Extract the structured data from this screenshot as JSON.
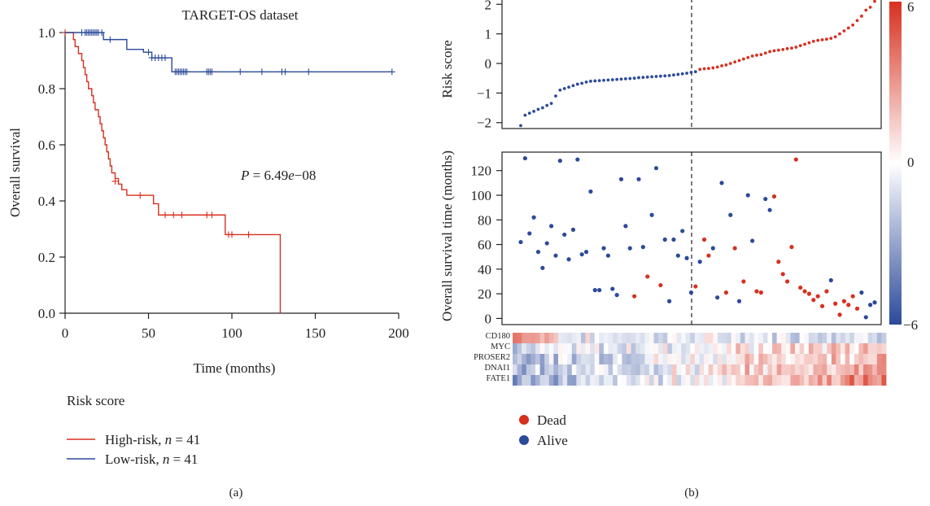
{
  "figure": {
    "panel_a_label": "(a)",
    "panel_b_label": "(b)"
  },
  "chart_data": [
    {
      "type": "line",
      "chart_kind": "kaplan-meier",
      "title": "TARGET-OS dataset",
      "xlabel": "Time (months)",
      "ylabel": "Overall survival",
      "xlim": [
        0,
        200
      ],
      "ylim": [
        0,
        1
      ],
      "x_ticks": [
        0,
        50,
        100,
        150,
        200
      ],
      "y_ticks": [
        0.0,
        0.2,
        0.4,
        0.6,
        0.8,
        1.0
      ],
      "x_tick_labels": [
        "0",
        "50",
        "100",
        "150",
        "200"
      ],
      "y_tick_labels": [
        "0.0",
        "0.2",
        "0.4",
        "0.6",
        "0.8",
        "1.0"
      ],
      "annotation": {
        "prefix": "P",
        "equals": " = 6.49",
        "e": "e",
        "suffix": "−08"
      },
      "legend": {
        "title": "Risk score",
        "placement": "bottom-left",
        "entries": [
          {
            "label": "High-risk, ",
            "n_label": "n",
            "n_value": " = 41"
          },
          {
            "label": "Low-risk, ",
            "n_label": "n",
            "n_value": " = 41"
          }
        ]
      },
      "series": [
        {
          "key": "high",
          "color": "#d7301f",
          "steps": [
            [
              0,
              1.0
            ],
            [
              5,
              0.975
            ],
            [
              6,
              0.95
            ],
            [
              8,
              0.925
            ],
            [
              10,
              0.9
            ],
            [
              11,
              0.875
            ],
            [
              12,
              0.85
            ],
            [
              13,
              0.825
            ],
            [
              14,
              0.8
            ],
            [
              16,
              0.775
            ],
            [
              17,
              0.75
            ],
            [
              18,
              0.725
            ],
            [
              20,
              0.7
            ],
            [
              21,
              0.675
            ],
            [
              22,
              0.65
            ],
            [
              23,
              0.625
            ],
            [
              24,
              0.6
            ],
            [
              25,
              0.575
            ],
            [
              26,
              0.55
            ],
            [
              27,
              0.525
            ],
            [
              28,
              0.5
            ],
            [
              30,
              0.48
            ],
            [
              32,
              0.46
            ],
            [
              34,
              0.44
            ],
            [
              37,
              0.42
            ],
            [
              53,
              0.39
            ],
            [
              56,
              0.35
            ],
            [
              96,
              0.28
            ],
            [
              129,
              0.28
            ],
            [
              129,
              0.0
            ]
          ],
          "censor_times": [
            0,
            30,
            45,
            60,
            65,
            70,
            85,
            88,
            98,
            100,
            110
          ],
          "censor_values": [
            1.0,
            0.47,
            0.42,
            0.35,
            0.35,
            0.35,
            0.35,
            0.35,
            0.28,
            0.28,
            0.28
          ]
        },
        {
          "key": "low",
          "color": "#2c4a9a",
          "steps": [
            [
              0,
              1.0
            ],
            [
              20,
              1.0
            ],
            [
              23,
              0.975
            ],
            [
              37,
              0.94
            ],
            [
              47,
              0.93
            ],
            [
              52,
              0.91
            ],
            [
              64,
              0.86
            ],
            [
              196,
              0.86
            ]
          ],
          "censor_times": [
            10,
            12,
            13,
            14,
            15,
            16,
            17,
            18,
            19,
            20,
            22,
            27,
            50,
            52,
            54,
            56,
            58,
            60,
            66,
            67,
            68,
            69,
            70,
            71,
            72,
            73,
            85,
            86,
            87,
            88,
            105,
            118,
            130,
            132,
            146,
            196
          ],
          "censor_values": [
            1.0,
            1.0,
            1.0,
            1.0,
            1.0,
            1.0,
            1.0,
            1.0,
            1.0,
            1.0,
            1.0,
            0.975,
            0.93,
            0.91,
            0.91,
            0.91,
            0.91,
            0.91,
            0.86,
            0.86,
            0.86,
            0.86,
            0.86,
            0.86,
            0.86,
            0.86,
            0.86,
            0.86,
            0.86,
            0.86,
            0.86,
            0.86,
            0.86,
            0.86,
            0.86,
            0.86
          ]
        }
      ]
    },
    {
      "type": "scatter",
      "chart_kind": "risk-score-curve",
      "ylabel": "Risk score",
      "ylim": [
        -2.2,
        2.2
      ],
      "y_ticks": [
        -2,
        -1,
        0,
        1,
        2
      ],
      "y_tick_labels": [
        "−2",
        "−1",
        "0",
        "1",
        "2"
      ],
      "cutoff_rank": 41,
      "n_patients": 82,
      "low_color": "#2c4a9a",
      "high_color": "#d7301f",
      "scores": [
        -2.1,
        -1.75,
        -1.68,
        -1.62,
        -1.55,
        -1.5,
        -1.42,
        -1.35,
        -1.1,
        -0.9,
        -0.85,
        -0.8,
        -0.75,
        -0.7,
        -0.67,
        -0.63,
        -0.6,
        -0.59,
        -0.58,
        -0.57,
        -0.56,
        -0.55,
        -0.54,
        -0.53,
        -0.52,
        -0.51,
        -0.5,
        -0.48,
        -0.47,
        -0.46,
        -0.45,
        -0.44,
        -0.43,
        -0.42,
        -0.41,
        -0.39,
        -0.37,
        -0.35,
        -0.33,
        -0.3,
        -0.28,
        -0.2,
        -0.18,
        -0.17,
        -0.15,
        -0.12,
        -0.08,
        -0.05,
        0.0,
        0.05,
        0.1,
        0.15,
        0.2,
        0.25,
        0.28,
        0.3,
        0.35,
        0.4,
        0.43,
        0.45,
        0.47,
        0.5,
        0.52,
        0.55,
        0.6,
        0.65,
        0.7,
        0.75,
        0.78,
        0.8,
        0.82,
        0.85,
        0.9,
        1.0,
        1.1,
        1.2,
        1.3,
        1.45,
        1.6,
        1.8,
        1.9,
        2.1
      ]
    },
    {
      "type": "scatter",
      "chart_kind": "survival-status",
      "ylabel": "Overall survival time (months)",
      "ylim": [
        -5,
        135
      ],
      "y_ticks": [
        0,
        20,
        40,
        60,
        80,
        100,
        120
      ],
      "y_tick_labels": [
        "0",
        "20",
        "40",
        "60",
        "80",
        "100",
        "120"
      ],
      "cutoff_rank": 41,
      "legend": {
        "placement": "bottom-left",
        "entries": [
          {
            "label": "Dead",
            "color": "#d7301f"
          },
          {
            "label": "Alive",
            "color": "#2c4a9a"
          }
        ]
      },
      "points": [
        [
          1,
          62,
          "a"
        ],
        [
          2,
          130,
          "a"
        ],
        [
          3,
          69,
          "a"
        ],
        [
          4,
          82,
          "a"
        ],
        [
          5,
          54,
          "a"
        ],
        [
          6,
          41,
          "a"
        ],
        [
          7,
          61,
          "a"
        ],
        [
          8,
          75,
          "a"
        ],
        [
          9,
          51,
          "a"
        ],
        [
          10,
          128,
          "a"
        ],
        [
          11,
          68,
          "a"
        ],
        [
          12,
          48,
          "a"
        ],
        [
          13,
          72,
          "a"
        ],
        [
          14,
          129,
          "a"
        ],
        [
          15,
          52,
          "a"
        ],
        [
          16,
          54,
          "a"
        ],
        [
          17,
          103,
          "a"
        ],
        [
          18,
          23,
          "a"
        ],
        [
          19,
          23,
          "a"
        ],
        [
          20,
          57,
          "a"
        ],
        [
          21,
          51,
          "a"
        ],
        [
          22,
          24,
          "a"
        ],
        [
          23,
          19,
          "a"
        ],
        [
          24,
          113,
          "a"
        ],
        [
          25,
          75,
          "a"
        ],
        [
          26,
          57,
          "a"
        ],
        [
          27,
          18,
          "d"
        ],
        [
          28,
          113,
          "a"
        ],
        [
          29,
          58,
          "a"
        ],
        [
          30,
          34,
          "d"
        ],
        [
          31,
          84,
          "a"
        ],
        [
          32,
          122,
          "a"
        ],
        [
          33,
          27,
          "d"
        ],
        [
          34,
          64,
          "a"
        ],
        [
          35,
          14,
          "a"
        ],
        [
          36,
          64,
          "a"
        ],
        [
          37,
          51,
          "a"
        ],
        [
          38,
          71,
          "a"
        ],
        [
          39,
          49,
          "a"
        ],
        [
          40,
          21,
          "a"
        ],
        [
          41,
          26,
          "d"
        ],
        [
          42,
          46,
          "a"
        ],
        [
          43,
          64,
          "d"
        ],
        [
          44,
          51,
          "d"
        ],
        [
          45,
          57,
          "a"
        ],
        [
          46,
          17,
          "a"
        ],
        [
          47,
          110,
          "a"
        ],
        [
          48,
          21,
          "d"
        ],
        [
          49,
          84,
          "a"
        ],
        [
          50,
          57,
          "d"
        ],
        [
          51,
          14,
          "a"
        ],
        [
          52,
          30,
          "d"
        ],
        [
          53,
          100,
          "a"
        ],
        [
          54,
          63,
          "a"
        ],
        [
          55,
          22,
          "d"
        ],
        [
          56,
          21,
          "d"
        ],
        [
          57,
          97,
          "a"
        ],
        [
          58,
          88,
          "a"
        ],
        [
          59,
          99,
          "d"
        ],
        [
          60,
          46,
          "d"
        ],
        [
          61,
          36,
          "d"
        ],
        [
          62,
          30,
          "d"
        ],
        [
          63,
          58,
          "d"
        ],
        [
          64,
          129,
          "d"
        ],
        [
          65,
          25,
          "d"
        ],
        [
          66,
          22,
          "d"
        ],
        [
          67,
          20,
          "d"
        ],
        [
          68,
          15,
          "d"
        ],
        [
          69,
          18,
          "d"
        ],
        [
          70,
          10,
          "d"
        ],
        [
          71,
          22,
          "d"
        ],
        [
          72,
          31,
          "a"
        ],
        [
          73,
          12,
          "d"
        ],
        [
          74,
          3,
          "d"
        ],
        [
          75,
          14,
          "d"
        ],
        [
          76,
          11,
          "d"
        ],
        [
          77,
          18,
          "d"
        ],
        [
          78,
          8,
          "d"
        ],
        [
          79,
          21,
          "a"
        ],
        [
          80,
          1,
          "a"
        ],
        [
          81,
          11,
          "a"
        ],
        [
          82,
          13,
          "a"
        ]
      ]
    },
    {
      "type": "heatmap",
      "chart_kind": "expression-heatmap",
      "genes": [
        "CD180",
        "MYC",
        "PROSER2",
        "DNAI1",
        "FATE1"
      ],
      "color_scale": {
        "min": -6,
        "mid": 0,
        "max": 6,
        "low_color": "#2c4a9a",
        "mid_color": "#ffffff",
        "high_color": "#d7301f"
      },
      "colorbar_labels": [
        "6",
        "0",
        "−6"
      ],
      "n_columns": 82
    }
  ]
}
